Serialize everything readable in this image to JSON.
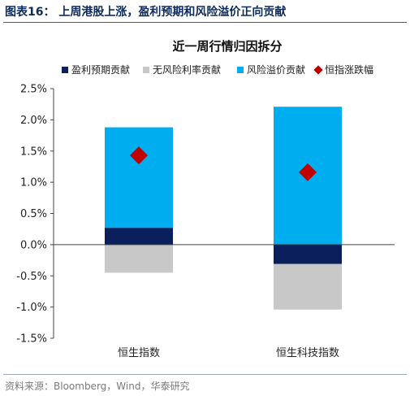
{
  "figure": {
    "title": "图表16：  上周港股上涨，盈利预期和风险溢价正向贡献",
    "source": "资料来源：Bloomberg，Wind，华泰研究"
  },
  "chart_data": {
    "type": "bar",
    "stacked": true,
    "title": "近一周行情归因拆分",
    "xlabel": "",
    "ylabel": "",
    "categories": [
      "恒生指数",
      "恒生科技指数"
    ],
    "ylim": [
      -1.5,
      2.5
    ],
    "yticks": [
      -1.5,
      -1.0,
      -0.5,
      0.0,
      0.5,
      1.0,
      1.5,
      2.0,
      2.5
    ],
    "ytick_labels": [
      "-1.5%",
      "-1.0%",
      "-0.5%",
      "0.0%",
      "0.5%",
      "1.0%",
      "1.5%",
      "2.0%",
      "2.5%"
    ],
    "grid": false,
    "legend_position": "top",
    "series": [
      {
        "name": "盈利预期贡献",
        "kind": "bar",
        "color": "#0b1f5c",
        "values": [
          0.27,
          -0.31
        ]
      },
      {
        "name": "无风险利率贡献",
        "kind": "bar",
        "color": "#c8c8c8",
        "values": [
          -0.45,
          -0.73
        ]
      },
      {
        "name": "风险溢价贡献",
        "kind": "bar",
        "color": "#00aeef",
        "values": [
          1.61,
          2.21
        ]
      },
      {
        "name": "恒指涨跌幅",
        "kind": "marker",
        "color": "#c00000",
        "values": [
          1.43,
          1.16
        ]
      }
    ]
  }
}
